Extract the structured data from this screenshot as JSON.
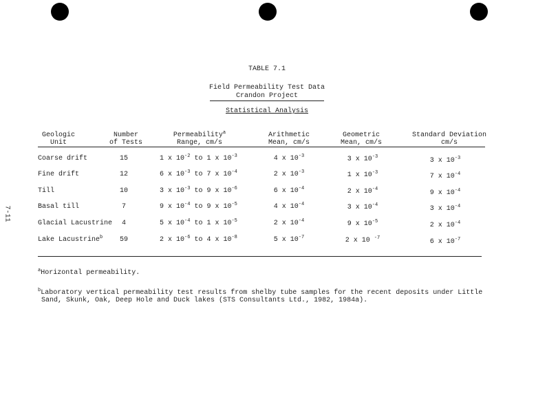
{
  "page_number": "7-11",
  "table_label": "TABLE 7.1",
  "title_line1": "Field Permeability Test Data",
  "title_line2": "Crandon Project",
  "subtitle": "Statistical Analysis",
  "headers": [
    {
      "line1": "Geologic",
      "line2": "Unit"
    },
    {
      "line1": "Number",
      "line2": "of Tests"
    },
    {
      "line1": "Permeability",
      "sup": "a",
      "line2": "Range, cm/s"
    },
    {
      "line1": "Arithmetic",
      "line2": "Mean, cm/s"
    },
    {
      "line1": "Geometric",
      "line2": "Mean, cm/s"
    },
    {
      "line1": "Standard Deviation",
      "line2": "cm/s"
    }
  ],
  "rows": [
    {
      "unit": "Coarse drift",
      "unit_sup": "",
      "n": "15",
      "r1": "1 x 10",
      "r1e": "-2",
      "to": "to",
      "r2": "1 x 10",
      "r2e": "-3",
      "am": "4 x 10",
      "ame": "-3",
      "gm": "3 x 10",
      "gme": "-3",
      "sd": "3 x 10",
      "sde": "-3"
    },
    {
      "unit": "Fine drift",
      "unit_sup": "",
      "n": "12",
      "r1": "6 x 10",
      "r1e": "-3",
      "to": "to",
      "r2": "7 x 10",
      "r2e": "-4",
      "am": "2 x 10",
      "ame": "-3",
      "gm": "1 x 10",
      "gme": "-3",
      "sd": "7 x 10",
      "sde": "-4"
    },
    {
      "unit": "Till",
      "unit_sup": "",
      "n": "10",
      "r1": "3 x 10",
      "r1e": "-3",
      "to": "to",
      "r2": "9 x 10",
      "r2e": "-6",
      "am": "6 x 10",
      "ame": "-4",
      "gm": "2 x 10",
      "gme": "-4",
      "sd": "9 x 10",
      "sde": "-4"
    },
    {
      "unit": "Basal till",
      "unit_sup": "",
      "n": "7",
      "r1": "9 x 10",
      "r1e": "-4",
      "to": "to",
      "r2": "9 x 10",
      "r2e": "-5",
      "am": "4 x 10",
      "ame": "-4",
      "gm": "3 x 10",
      "gme": "-4",
      "sd": "3 x 10",
      "sde": "-4"
    },
    {
      "unit": "Glacial Lacustrine",
      "unit_sup": "",
      "n": "4",
      "r1": "5 x 10",
      "r1e": "-4",
      "to": "to",
      "r2": "1 x 10",
      "r2e": "-5",
      "am": "2 x 10",
      "ame": "-4",
      "gm": "9 x 10",
      "gme": "-5",
      "sd": "2 x 10",
      "sde": "-4"
    },
    {
      "unit": "Lake Lacustrine",
      "unit_sup": "b",
      "n": "59",
      "r1": "2 x 10",
      "r1e": "-6",
      "to": "to",
      "r2": "4 x 10",
      "r2e": "-8",
      "am": "5 x 10",
      "ame": "-7",
      "gm": "2 x 10 ",
      "gme": "-7",
      "sd": "6 x 10",
      "sde": "-7"
    }
  ],
  "footnotes": [
    {
      "mark": "a",
      "line1": "Horizontal permeability.",
      "line2": ""
    },
    {
      "mark": "b",
      "line1": "Laboratory vertical permeability test results from shelby tube samples for the recent deposits under Little",
      "line2": "Sand, Skunk, Oak, Deep Hole and Duck lakes (STS Consultants Ltd., 1982, 1984a)."
    }
  ]
}
